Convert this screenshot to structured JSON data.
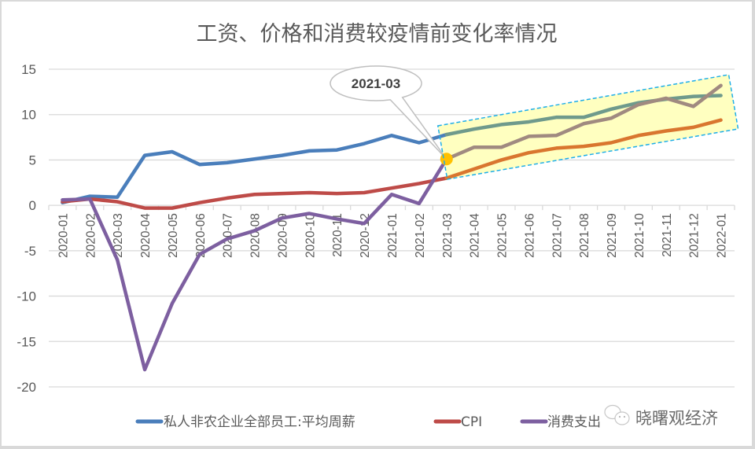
{
  "chart_data": {
    "type": "line",
    "title": "工资、价格和消费较疫情前变化率情况",
    "xlabel": "",
    "ylabel": "",
    "ylim": [
      -20,
      15
    ],
    "yticks": [
      "15",
      "10",
      "5",
      "0",
      "-5",
      "-10",
      "-15",
      "-20"
    ],
    "ytick_values": [
      15,
      10,
      5,
      0,
      -5,
      -10,
      -15,
      -20
    ],
    "grid": true,
    "legend_position": "bottom",
    "categories": [
      "2020-01",
      "2020-02",
      "2020-03",
      "2020-04",
      "2020-05",
      "2020-06",
      "2020-07",
      "2020-08",
      "2020-09",
      "2020-10",
      "2020-11",
      "2020-12",
      "2021-01",
      "2021-02",
      "2021-03",
      "2021-04",
      "2021-05",
      "2021-06",
      "2021-07",
      "2021-08",
      "2021-09",
      "2021-10",
      "2021-11",
      "2021-12",
      "2022-01"
    ],
    "series": [
      {
        "name": "私人非农企业全部员工:平均周薪",
        "color": "#4a7ebb",
        "highlight_color": "#6f9a8c",
        "values": [
          0.3,
          1.0,
          0.9,
          5.5,
          5.9,
          4.5,
          4.7,
          5.1,
          5.5,
          6.0,
          6.1,
          6.8,
          7.7,
          6.9,
          7.8,
          8.4,
          8.9,
          9.2,
          9.7,
          9.7,
          10.6,
          11.3,
          11.7,
          12.0,
          12.1
        ]
      },
      {
        "name": "CPI",
        "color": "#be4b48",
        "highlight_color": "#d9762f",
        "values": [
          0.4,
          0.7,
          0.4,
          -0.3,
          -0.3,
          0.3,
          0.8,
          1.2,
          1.3,
          1.4,
          1.3,
          1.4,
          1.9,
          2.4,
          3.0,
          4.0,
          5.0,
          5.8,
          6.3,
          6.5,
          6.9,
          7.7,
          8.2,
          8.6,
          9.4
        ]
      },
      {
        "name": "消费支出",
        "color": "#7d5fa0",
        "highlight_color": "#a08a80",
        "values": [
          0.6,
          0.7,
          -6.0,
          -18.1,
          -10.8,
          -5.4,
          -3.7,
          -2.8,
          -1.4,
          -0.9,
          -1.5,
          -2.0,
          1.2,
          0.2,
          5.1,
          6.4,
          6.4,
          7.6,
          7.7,
          9.0,
          9.6,
          11.1,
          11.8,
          10.9,
          13.2
        ]
      }
    ],
    "highlight_start_category": "2021-03",
    "annotations": [
      {
        "text": "2021-03",
        "category": "2021-03",
        "marker_color": "#ffc000"
      }
    ],
    "highlight_fill": "#ffffc0",
    "highlight_border": "#1eaee8"
  },
  "watermark": {
    "text": "晓曙观经济"
  }
}
